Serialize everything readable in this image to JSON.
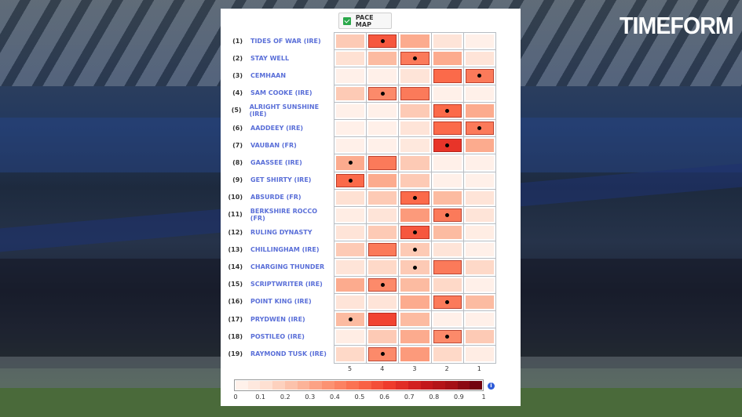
{
  "brand": {
    "logo": "TIMEFORM"
  },
  "toggle": {
    "label": "PACE MAP",
    "checked": true
  },
  "info_icon": "i",
  "chart_data": {
    "type": "heatmap",
    "title": "PACE MAP",
    "x_categories": [
      "5",
      "4",
      "3",
      "2",
      "1"
    ],
    "xlabel": "",
    "ylabel": "",
    "colorscale": {
      "min": 0,
      "max": 1,
      "ticks": [
        "0",
        "0.1",
        "0.2",
        "0.3",
        "0.4",
        "0.5",
        "0.6",
        "0.7",
        "0.8",
        "0.9",
        "1"
      ],
      "low_color": "#fff5f0",
      "high_color": "#67000d"
    },
    "rows": [
      {
        "num": "(1)",
        "name": "TIDES OF WAR (IRE)",
        "values": [
          0.2,
          0.55,
          0.3,
          0.1,
          0.03
        ],
        "dot": 1
      },
      {
        "num": "(2)",
        "name": "STAY WELL",
        "values": [
          0.12,
          0.25,
          0.45,
          0.3,
          0.1
        ],
        "dot": 2
      },
      {
        "num": "(3)",
        "name": "CEMHAAN",
        "values": [
          0.03,
          0.03,
          0.1,
          0.5,
          0.45
        ],
        "dot": 4
      },
      {
        "num": "(4)",
        "name": "SAM COOKE (IRE)",
        "values": [
          0.2,
          0.4,
          0.45,
          0.03,
          0.03
        ],
        "dot": 1
      },
      {
        "num": "(5)",
        "name": "ALRIGHT SUNSHINE (IRE)",
        "values": [
          0.03,
          0.03,
          0.2,
          0.5,
          0.3
        ],
        "dot": 3
      },
      {
        "num": "(6)",
        "name": "AADDEEY (IRE)",
        "values": [
          0.03,
          0.03,
          0.1,
          0.5,
          0.45
        ],
        "dot": 4
      },
      {
        "num": "(7)",
        "name": "VAUBAN (FR)",
        "values": [
          0.03,
          0.03,
          0.08,
          0.65,
          0.3
        ],
        "dot": 3
      },
      {
        "num": "(8)",
        "name": "GAASSEE (IRE)",
        "values": [
          0.3,
          0.45,
          0.2,
          0.03,
          0.03
        ],
        "dot": 0
      },
      {
        "num": "(9)",
        "name": "GET SHIRTY (IRE)",
        "values": [
          0.5,
          0.3,
          0.2,
          0.03,
          0.03
        ],
        "dot": 0
      },
      {
        "num": "(10)",
        "name": "ABSURDE (FR)",
        "values": [
          0.12,
          0.2,
          0.5,
          0.25,
          0.1
        ],
        "dot": 2
      },
      {
        "num": "(11)",
        "name": "BERKSHIRE ROCCO (FR)",
        "values": [
          0.05,
          0.1,
          0.35,
          0.45,
          0.1
        ],
        "dot": 3
      },
      {
        "num": "(12)",
        "name": "RULING DYNASTY",
        "values": [
          0.1,
          0.2,
          0.55,
          0.25,
          0.05
        ],
        "dot": 2
      },
      {
        "num": "(13)",
        "name": "CHILLINGHAM (IRE)",
        "values": [
          0.2,
          0.45,
          0.2,
          0.1,
          0.03
        ],
        "dot": 2
      },
      {
        "num": "(14)",
        "name": "CHARGING THUNDER",
        "values": [
          0.1,
          0.15,
          0.2,
          0.45,
          0.15
        ],
        "dot": 2
      },
      {
        "num": "(15)",
        "name": "SCRIPTWRITER (IRE)",
        "values": [
          0.3,
          0.4,
          0.25,
          0.15,
          0.03
        ],
        "dot": 1
      },
      {
        "num": "(16)",
        "name": "POINT KING (IRE)",
        "values": [
          0.1,
          0.1,
          0.3,
          0.45,
          0.25
        ],
        "dot": 3
      },
      {
        "num": "(17)",
        "name": "PRYDWEN (IRE)",
        "values": [
          0.25,
          0.6,
          0.25,
          0.03,
          0.03
        ],
        "dot": 0
      },
      {
        "num": "(18)",
        "name": "POSTILEO (IRE)",
        "values": [
          0.05,
          0.2,
          0.3,
          0.4,
          0.2
        ],
        "dot": 3
      },
      {
        "num": "(19)",
        "name": "RAYMOND TUSK (IRE)",
        "values": [
          0.15,
          0.4,
          0.35,
          0.15,
          0.05
        ],
        "dot": 1
      }
    ]
  }
}
